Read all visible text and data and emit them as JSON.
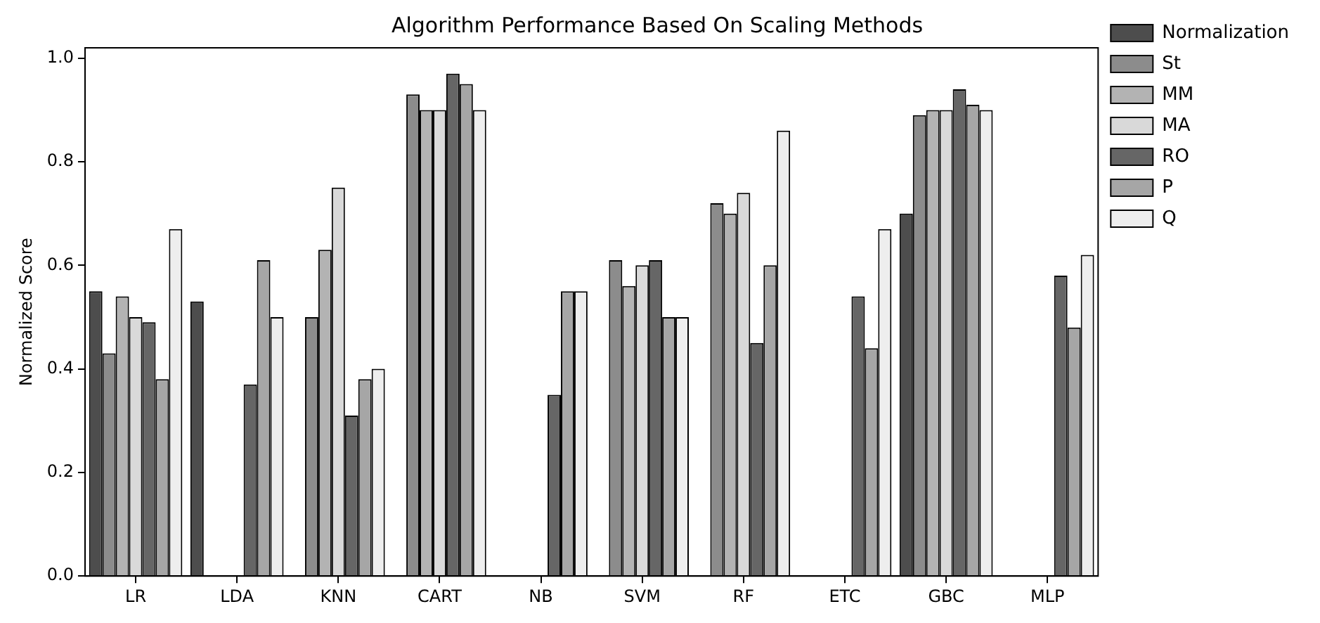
{
  "chart_data": {
    "type": "bar",
    "title": "Algorithm Performance Based On Scaling Methods",
    "ylabel": "Normalized Score",
    "categories": [
      "LR",
      "LDA",
      "KNN",
      "CART",
      "NB",
      "SVM",
      "RF",
      "ETC",
      "GBC",
      "MLP"
    ],
    "series": [
      {
        "name": "Normalization",
        "color": "#4d4d4d",
        "values": [
          0.55,
          0.53,
          null,
          null,
          null,
          null,
          null,
          null,
          0.7,
          null
        ]
      },
      {
        "name": "St",
        "color": "#8c8c8c",
        "values": [
          0.43,
          null,
          0.5,
          0.93,
          null,
          0.61,
          0.72,
          null,
          0.89,
          null
        ]
      },
      {
        "name": "MM",
        "color": "#b3b3b3",
        "values": [
          0.54,
          null,
          0.63,
          0.9,
          null,
          0.56,
          0.7,
          null,
          0.9,
          null
        ]
      },
      {
        "name": "MA",
        "color": "#d9d9d9",
        "values": [
          0.5,
          null,
          0.75,
          0.9,
          null,
          0.6,
          0.74,
          null,
          0.9,
          null
        ]
      },
      {
        "name": "RO",
        "color": "#666666",
        "values": [
          0.49,
          0.37,
          0.31,
          0.97,
          0.35,
          0.61,
          0.45,
          0.54,
          0.94,
          0.58
        ]
      },
      {
        "name": "P",
        "color": "#a6a6a6",
        "values": [
          0.38,
          0.61,
          0.38,
          0.95,
          0.55,
          0.5,
          0.6,
          0.44,
          0.91,
          0.48
        ]
      },
      {
        "name": "Q",
        "color": "#eeeeee",
        "values": [
          0.67,
          0.5,
          0.4,
          0.9,
          0.55,
          0.5,
          0.86,
          0.67,
          0.9,
          0.62
        ]
      }
    ],
    "ylim": [
      0,
      1.02
    ],
    "yticks": [
      {
        "value": 0,
        "label": "0.0"
      },
      0.2,
      0.4,
      0.6,
      0.8,
      {
        "value": 1,
        "label": "1.0"
      }
    ],
    "legend": "right"
  }
}
